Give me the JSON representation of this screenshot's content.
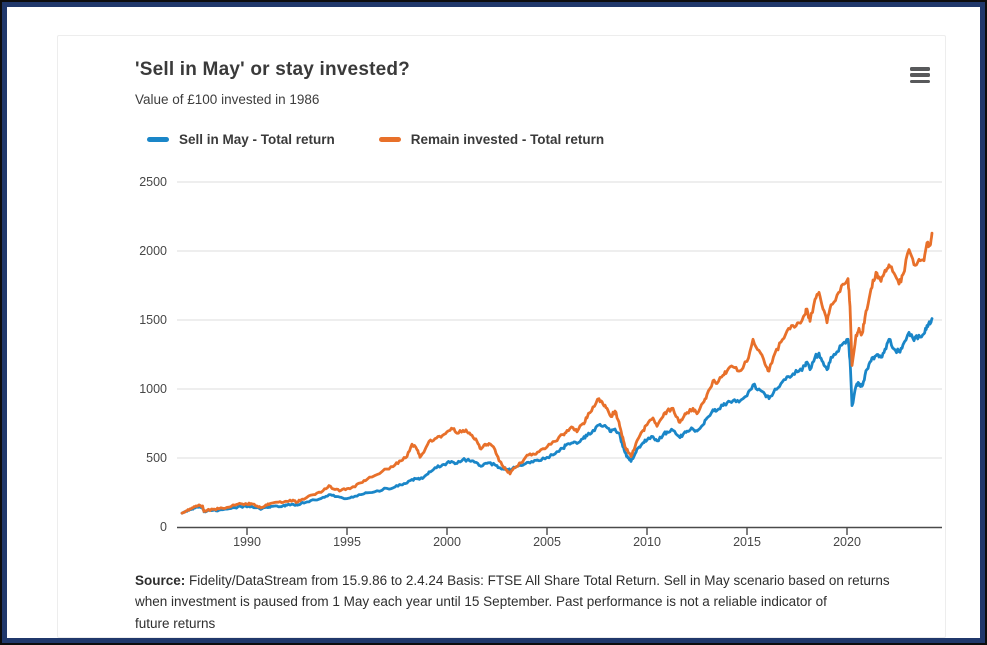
{
  "frame": {
    "border_color": "#20386b",
    "outer_color": "#0d0d0d",
    "background": "#ffffff"
  },
  "header": {
    "title": "'Sell in May' or stay invested?",
    "subtitle": "Value of £100 invested in 1986"
  },
  "menu": {
    "icon": "hamburger-menu-icon",
    "color": "#58595b"
  },
  "legend": {
    "items": [
      {
        "label": "Sell in May - Total return",
        "color": "#1a86c8"
      },
      {
        "label": "Remain invested - Total return",
        "color": "#e8702a"
      }
    ]
  },
  "footnote": {
    "source_label": "Source:",
    "line1": " Fidelity/DataStream from 15.9.86 to 2.4.24 Basis: FTSE All Share Total Return. Sell in May scenario based on returns",
    "line2": "when investment is paused from 1 May each year until 15 September. Past performance is not a reliable indicator of",
    "line3": "future returns"
  },
  "chart_data": {
    "type": "line",
    "title": "'Sell in May' or stay invested?",
    "subtitle": "Value of £100 invested in 1986",
    "xlabel": "",
    "ylabel": "",
    "xlim": [
      1986.5,
      2024.75
    ],
    "ylim": [
      0,
      2500
    ],
    "x_ticks": [
      1990,
      1995,
      2000,
      2005,
      2010,
      2015,
      2020
    ],
    "y_ticks": [
      0,
      500,
      1000,
      1500,
      2000,
      2500
    ],
    "grid": "horizontal-light",
    "legend_position": "top-left",
    "x": [
      1986.75,
      1987.0,
      1987.2,
      1987.4,
      1987.6,
      1987.78,
      1987.85,
      1988.0,
      1988.3,
      1988.6,
      1989.0,
      1989.4,
      1989.7,
      1990.0,
      1990.2,
      1990.5,
      1990.75,
      1991.0,
      1991.2,
      1991.5,
      1991.8,
      1992.0,
      1992.3,
      1992.5,
      1992.7,
      1993.0,
      1993.4,
      1993.8,
      1994.1,
      1994.4,
      1994.7,
      1995.0,
      1995.3,
      1995.7,
      1996.0,
      1996.5,
      1997.0,
      1997.4,
      1997.7,
      1998.0,
      1998.25,
      1998.5,
      1998.65,
      1998.9,
      1999.1,
      1999.4,
      1999.7,
      2000.0,
      2000.3,
      2000.5,
      2000.8,
      2001.0,
      2001.25,
      2001.5,
      2001.7,
      2001.9,
      2002.1,
      2002.4,
      2002.6,
      2002.8,
      2003.0,
      2003.15,
      2003.4,
      2003.7,
      2004.0,
      2004.3,
      2004.6,
      2005.0,
      2005.4,
      2005.8,
      2006.0,
      2006.3,
      2006.5,
      2006.8,
      2007.0,
      2007.3,
      2007.6,
      2007.8,
      2008.0,
      2008.2,
      2008.4,
      2008.6,
      2008.75,
      2008.9,
      2009.05,
      2009.2,
      2009.4,
      2009.6,
      2009.8,
      2010.0,
      2010.3,
      2010.5,
      2010.8,
      2011.0,
      2011.3,
      2011.6,
      2011.8,
      2012.0,
      2012.3,
      2012.5,
      2012.8,
      2013.0,
      2013.3,
      2013.5,
      2013.8,
      2014.0,
      2014.3,
      2014.6,
      2015.0,
      2015.3,
      2015.6,
      2015.9,
      2016.1,
      2016.4,
      2016.7,
      2017.0,
      2017.3,
      2017.6,
      2017.9,
      2018.0,
      2018.15,
      2018.4,
      2018.6,
      2018.8,
      2019.0,
      2019.2,
      2019.5,
      2019.8,
      2020.05,
      2020.15,
      2020.25,
      2020.45,
      2020.6,
      2020.75,
      2020.9,
      2021.1,
      2021.3,
      2021.5,
      2021.7,
      2021.9,
      2022.1,
      2022.35,
      2022.6,
      2022.8,
      2023.1,
      2023.35,
      2023.6,
      2023.85,
      2024.0,
      2024.15,
      2024.25
    ],
    "series": [
      {
        "name": "Sell in May - Total return",
        "color": "#1a86c8",
        "values": [
          100,
          114,
          126,
          138,
          148,
          142,
          110,
          115,
          120,
          122,
          130,
          140,
          148,
          146,
          150,
          140,
          132,
          142,
          150,
          152,
          154,
          158,
          165,
          158,
          170,
          182,
          196,
          215,
          235,
          220,
          215,
          206,
          215,
          235,
          248,
          262,
          280,
          290,
          305,
          318,
          345,
          350,
          348,
          370,
          400,
          430,
          440,
          465,
          470,
          460,
          490,
          485,
          480,
          465,
          440,
          460,
          465,
          450,
          430,
          425,
          418,
          412,
          430,
          445,
          468,
          470,
          480,
          505,
          530,
          570,
          600,
          610,
          605,
          640,
          660,
          700,
          740,
          730,
          720,
          690,
          710,
          680,
          610,
          540,
          500,
          475,
          530,
          580,
          610,
          630,
          655,
          625,
          665,
          690,
          700,
          655,
          670,
          695,
          710,
          695,
          740,
          790,
          850,
          845,
          880,
          900,
          915,
          905,
          950,
          1030,
          1000,
          960,
          930,
          1000,
          1040,
          1090,
          1110,
          1130,
          1170,
          1195,
          1140,
          1230,
          1260,
          1195,
          1140,
          1230,
          1270,
          1330,
          1360,
          1210,
          880,
          1020,
          1040,
          1020,
          1100,
          1180,
          1230,
          1250,
          1230,
          1290,
          1360,
          1290,
          1270,
          1320,
          1410,
          1350,
          1390,
          1400,
          1460,
          1470,
          1510
        ]
      },
      {
        "name": "Remain invested - Total return",
        "color": "#e8702a",
        "values": [
          100,
          118,
          132,
          148,
          160,
          152,
          112,
          120,
          128,
          132,
          142,
          158,
          168,
          165,
          170,
          152,
          142,
          158,
          172,
          180,
          178,
          185,
          195,
          180,
          196,
          215,
          235,
          262,
          300,
          272,
          265,
          278,
          292,
          320,
          345,
          380,
          420,
          450,
          480,
          510,
          600,
          560,
          505,
          560,
          620,
          640,
          650,
          690,
          710,
          680,
          700,
          690,
          665,
          620,
          565,
          600,
          605,
          560,
          480,
          440,
          410,
          385,
          430,
          465,
          520,
          530,
          545,
          580,
          620,
          670,
          700,
          720,
          690,
          750,
          790,
          870,
          930,
          890,
          860,
          800,
          840,
          760,
          660,
          580,
          545,
          510,
          580,
          650,
          700,
          740,
          790,
          730,
          800,
          840,
          860,
          760,
          790,
          830,
          860,
          820,
          900,
          960,
          1060,
          1040,
          1100,
          1130,
          1160,
          1130,
          1200,
          1360,
          1280,
          1180,
          1130,
          1260,
          1340,
          1420,
          1460,
          1480,
          1540,
          1580,
          1490,
          1650,
          1700,
          1580,
          1480,
          1610,
          1680,
          1760,
          1800,
          1600,
          1170,
          1390,
          1440,
          1400,
          1520,
          1650,
          1790,
          1840,
          1780,
          1860,
          1900,
          1840,
          1760,
          1830,
          2010,
          1900,
          1940,
          1930,
          2060,
          2040,
          2130
        ]
      }
    ]
  }
}
